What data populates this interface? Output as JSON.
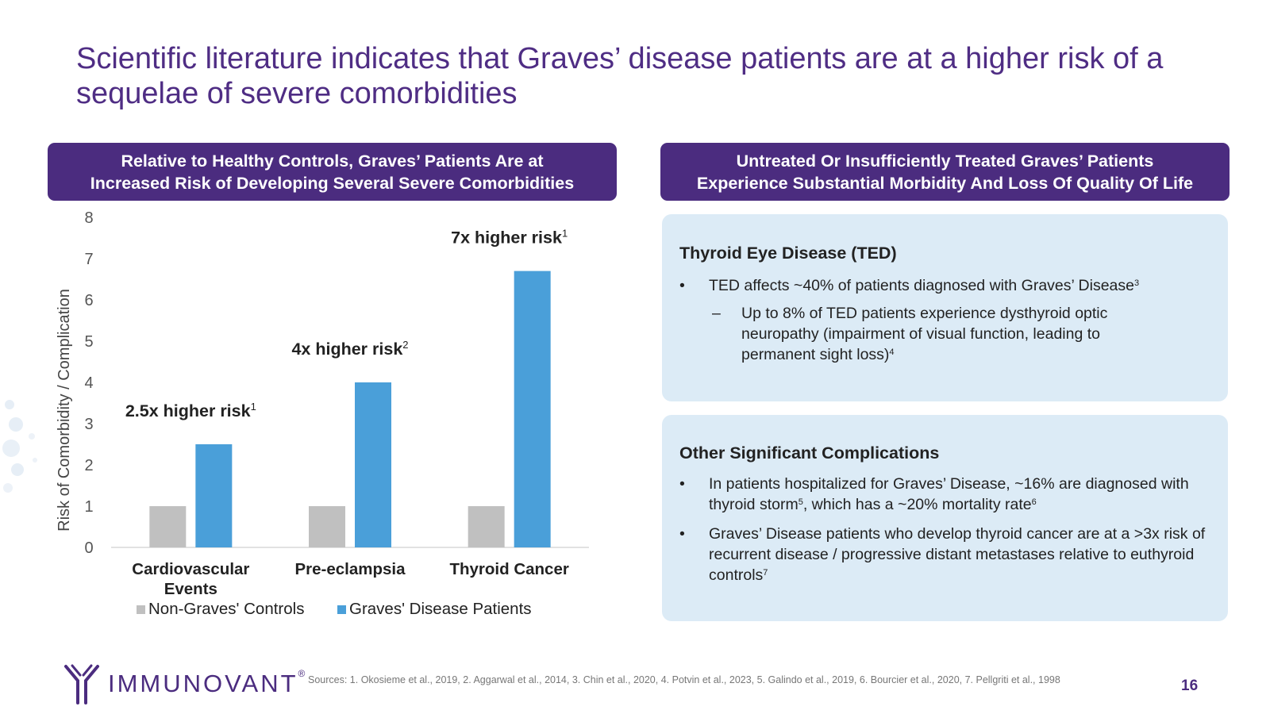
{
  "title": "Scientific literature indicates that Graves’ disease patients are at a higher risk of a sequelae of severe comorbidities",
  "left_header": {
    "line1": "Relative to Healthy Controls, Graves’ Patients Are at",
    "line2": "Increased Risk of Developing Several Severe Comorbidities"
  },
  "right_header": {
    "line1": "Untreated Or Insufficiently Treated Graves’ Patients",
    "line2": "Experience Substantial Morbidity And Loss Of Quality Of Life"
  },
  "chart_data": {
    "type": "bar",
    "title": "",
    "ylabel": "Risk of Comorbidity / Complication",
    "xlabel": "",
    "ylim": [
      0,
      8
    ],
    "yticks": [
      0,
      1,
      2,
      3,
      4,
      5,
      6,
      7,
      8
    ],
    "grid": false,
    "legend_position": "bottom",
    "categories": [
      "Cardiovascular Events",
      "Pre-eclampsia",
      "Thyroid Cancer"
    ],
    "category_lines": [
      [
        "Cardiovascular",
        "Events"
      ],
      [
        "Pre-eclampsia"
      ],
      [
        "Thyroid Cancer"
      ]
    ],
    "series": [
      {
        "name": "Non-Graves' Controls",
        "color": "#c0c0c0",
        "values": [
          1,
          1,
          1
        ]
      },
      {
        "name": "Graves' Disease Patients",
        "color": "#4a9fd9",
        "values": [
          2.5,
          4,
          6.7
        ]
      }
    ],
    "annotations": [
      {
        "text": "2.5x higher risk",
        "sup": "1"
      },
      {
        "text": "4x higher risk",
        "sup": "2"
      },
      {
        "text": "7x higher risk",
        "sup": "1"
      }
    ]
  },
  "ted": {
    "heading": "Thyroid Eye Disease (TED)",
    "bullet_mark": "•",
    "dash_mark": "–",
    "bullet1": "TED affects ~40% of patients diagnosed with Graves’ Disease",
    "bullet1_sup": "3",
    "sub1": "Up to 8% of TED patients experience dysthyroid optic neuropathy (impairment of visual function, leading to permanent sight loss)",
    "sub1_sup": "4"
  },
  "other": {
    "heading": "Other Significant Complications",
    "bullet1_a": "In patients hospitalized for Graves’ Disease, ~16% are diagnosed with thyroid storm",
    "bullet1_sup_a": "5",
    "bullet1_b": ", which has a ~20% mortality rate",
    "bullet1_sup_b": "6",
    "bullet2": "Graves’ Disease patients who develop thyroid cancer are at a >3x risk of recurrent disease / progressive distant metastases relative to euthyroid controls",
    "bullet2_sup": "7"
  },
  "logo": {
    "name": "IMMUNOVANT",
    "mark": "®"
  },
  "sources": "Sources: 1. Okosieme et al., 2019, 2. Aggarwal et al., 2014, 3. Chin et al., 2020, 4. Potvin et al., 2023, 5. Galindo et al., 2019, 6. Bourcier et al., 2020, 7. Pellgriti et al., 1998",
  "page_number": "16",
  "colors": {
    "brand_purple": "#4b2c7f",
    "panel_blue": "#dcebf6",
    "graves_bar": "#4a9fd9",
    "control_bar": "#c0c0c0"
  }
}
